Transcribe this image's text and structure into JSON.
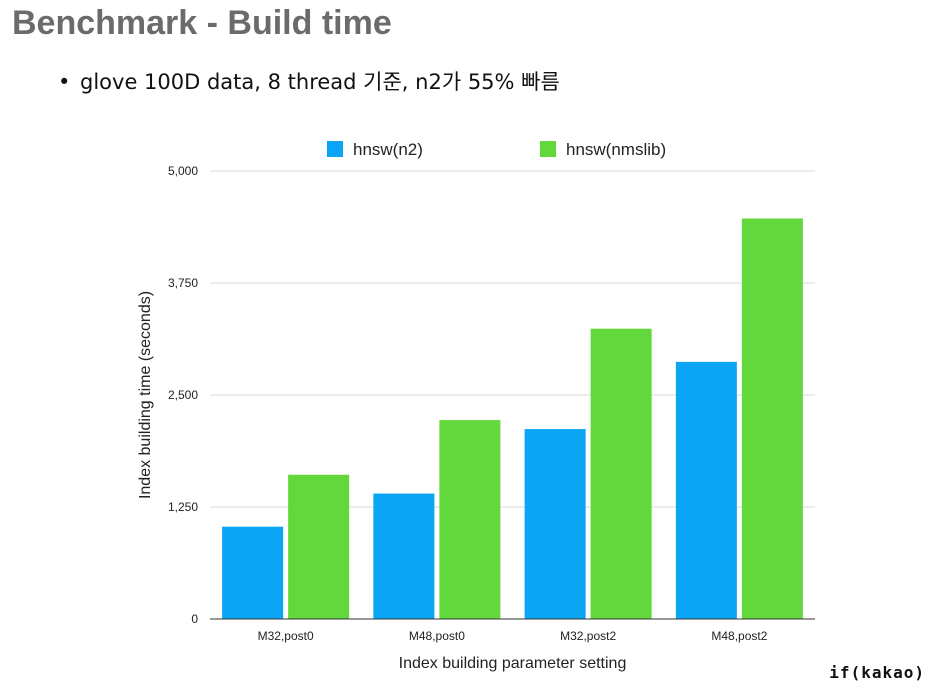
{
  "slide": {
    "title": "Benchmark - Build time",
    "bullet_marker": "•",
    "bullet": "glove 100D data, 8 thread 기준, n2가 55% 빠름",
    "brand": "if(kakao)"
  },
  "colors": {
    "n2": "#0aa5f5",
    "nmslib": "#62d83c",
    "grid": "#d8d8d8",
    "axis": "#333333"
  },
  "chart_data": {
    "type": "bar",
    "categories": [
      "M32,post0",
      "M48,post0",
      "M32,post2",
      "M48,post2"
    ],
    "series": [
      {
        "name": "hnsw(n2)",
        "values": [
          1030,
          1400,
          2120,
          2870
        ]
      },
      {
        "name": "hnsw(nmslib)",
        "values": [
          1610,
          2220,
          3240,
          4470
        ]
      }
    ],
    "xlabel": "Index building parameter setting",
    "ylabel": "Index building time (seconds)",
    "ylim": [
      0,
      5000
    ],
    "yticks": [
      0,
      1250,
      2500,
      3750,
      5000
    ],
    "ytick_labels": [
      "0",
      "1,250",
      "2,500",
      "3,750",
      "5,000"
    ],
    "grid": true,
    "legend": "top"
  }
}
